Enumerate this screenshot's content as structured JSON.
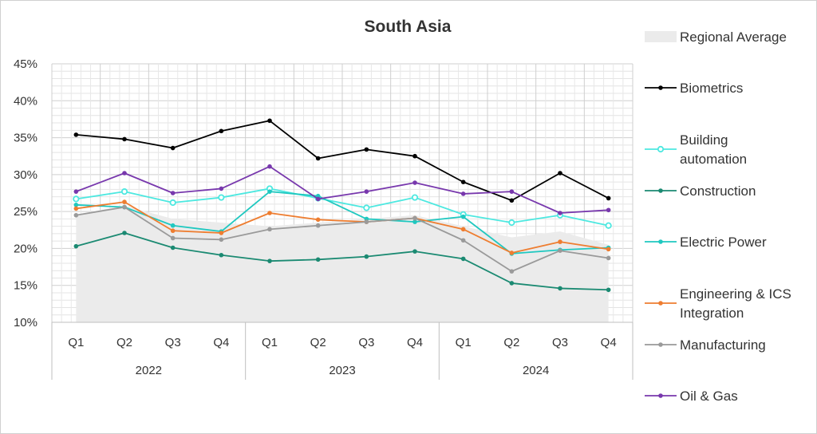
{
  "chart_data": {
    "type": "line",
    "title": "South Asia",
    "quarters": [
      "Q1",
      "Q2",
      "Q3",
      "Q4",
      "Q1",
      "Q2",
      "Q3",
      "Q4",
      "Q1",
      "Q2",
      "Q3",
      "Q4"
    ],
    "years": [
      "2022",
      "2023",
      "2024"
    ],
    "y_ticks": [
      "10%",
      "15%",
      "20%",
      "25%",
      "30%",
      "35%",
      "40%",
      "45%"
    ],
    "ylim": [
      10,
      45
    ],
    "grid": true,
    "legend_position": "right",
    "area": {
      "name": "Regional Average",
      "values": [
        24.6,
        25.8,
        24.0,
        23.5,
        23.0,
        23.5,
        24.0,
        24.5,
        23.0,
        21.5,
        22.3,
        20.5
      ],
      "color": "#ebebeb"
    },
    "series": [
      {
        "name": "Biometrics",
        "color": "#000000",
        "marker": "dot",
        "values": [
          35.4,
          34.8,
          33.6,
          35.9,
          37.3,
          32.2,
          33.4,
          32.5,
          29.0,
          26.5,
          30.2,
          26.8
        ]
      },
      {
        "name": "Building automation",
        "color": "#4de8e0",
        "marker": "ring",
        "values": [
          26.7,
          27.7,
          26.2,
          26.9,
          28.1,
          26.8,
          25.5,
          26.9,
          24.6,
          23.5,
          24.5,
          23.1
        ]
      },
      {
        "name": "Construction",
        "color": "#1b8a72",
        "marker": "dot",
        "values": [
          20.3,
          22.1,
          20.1,
          19.1,
          18.3,
          18.5,
          18.9,
          19.6,
          18.6,
          15.3,
          14.6,
          14.4
        ]
      },
      {
        "name": "Electric Power",
        "color": "#1fc8c0",
        "marker": "dot",
        "values": [
          25.9,
          25.6,
          23.1,
          22.3,
          27.7,
          27.1,
          24.0,
          23.6,
          24.3,
          19.3,
          19.8,
          20.1
        ]
      },
      {
        "name": "Engineering & ICS Integration",
        "color": "#ee7d30",
        "marker": "dot",
        "values": [
          25.4,
          26.3,
          22.4,
          22.1,
          24.8,
          23.9,
          23.6,
          24.1,
          22.6,
          19.4,
          20.9,
          19.9
        ]
      },
      {
        "name": "Manufacturing",
        "color": "#9a9a9a",
        "marker": "dot",
        "values": [
          24.5,
          25.6,
          21.4,
          21.2,
          22.6,
          23.1,
          23.6,
          24.1,
          21.1,
          16.9,
          19.7,
          18.7
        ]
      },
      {
        "name": "Oil & Gas",
        "color": "#7838ad",
        "marker": "dot",
        "values": [
          27.7,
          30.2,
          27.5,
          28.1,
          31.1,
          26.7,
          27.7,
          28.9,
          27.4,
          27.7,
          24.8,
          25.2
        ]
      }
    ],
    "legend_lines": {
      "Regional Average": [
        "Regional Average"
      ],
      "Biometrics": [
        "Biometrics"
      ],
      "Building automation": [
        "Building",
        "automation"
      ],
      "Construction": [
        "Construction"
      ],
      "Electric Power": [
        "Electric Power"
      ],
      "Engineering & ICS Integration": [
        "Engineering & ICS",
        "Integration"
      ],
      "Manufacturing": [
        "Manufacturing"
      ],
      "Oil & Gas": [
        "Oil & Gas"
      ]
    }
  }
}
